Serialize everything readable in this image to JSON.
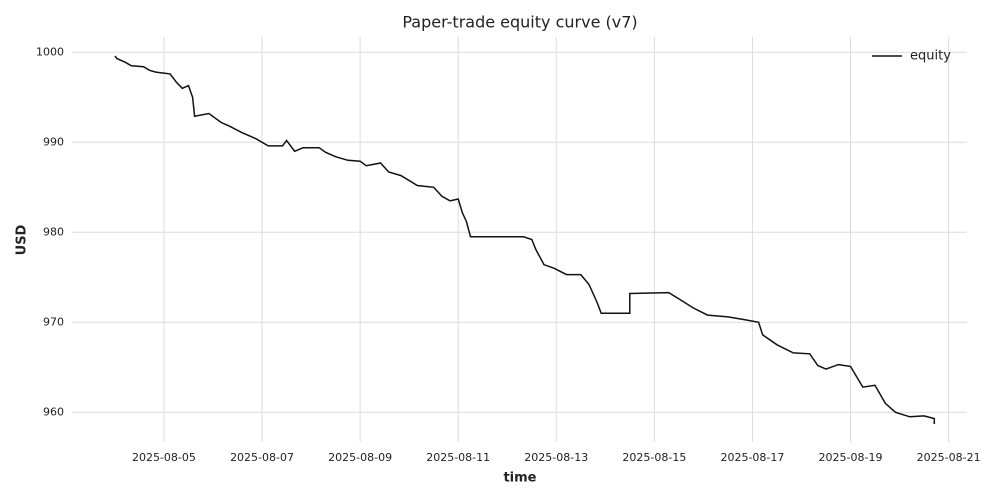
{
  "chart_data": {
    "type": "line",
    "title": "Paper-trade equity curve (v7)",
    "xlabel": "time",
    "ylabel": "USD",
    "x": [
      "2025-08-04T00:00",
      "2025-08-04T01:00",
      "2025-08-04T05:00",
      "2025-08-04T08:00",
      "2025-08-04T14:00",
      "2025-08-04T17:00",
      "2025-08-04T20:00",
      "2025-08-05T03:00",
      "2025-08-05T06:00",
      "2025-08-05T09:00",
      "2025-08-05T12:00",
      "2025-08-05T14:00",
      "2025-08-05T15:00",
      "2025-08-05T22:00",
      "2025-08-06T04:00",
      "2025-08-06T08:00",
      "2025-08-06T14:00",
      "2025-08-06T21:00",
      "2025-08-07T03:00",
      "2025-08-07T10:00",
      "2025-08-07T12:00",
      "2025-08-07T16:00",
      "2025-08-07T20:00",
      "2025-08-08T04:00",
      "2025-08-08T07:00",
      "2025-08-08T12:00",
      "2025-08-08T18:00",
      "2025-08-09T00:00",
      "2025-08-09T03:00",
      "2025-08-09T10:00",
      "2025-08-09T14:00",
      "2025-08-09T20:00",
      "2025-08-10T04:00",
      "2025-08-10T12:00",
      "2025-08-10T16:00",
      "2025-08-10T20:00",
      "2025-08-11T00:00",
      "2025-08-11T02:00",
      "2025-08-11T04:00",
      "2025-08-11T06:00",
      "2025-08-12T08:00",
      "2025-08-12T12:00",
      "2025-08-12T14:00",
      "2025-08-12T18:00",
      "2025-08-12T23:00",
      "2025-08-13T05:00",
      "2025-08-13T12:00",
      "2025-08-13T16:00",
      "2025-08-13T20:00",
      "2025-08-13T22:00",
      "2025-08-14T12:00",
      "2025-08-14T12:00",
      "2025-08-15T07:00",
      "2025-08-15T12:00",
      "2025-08-15T19:00",
      "2025-08-16T02:00",
      "2025-08-16T12:00",
      "2025-08-16T20:00",
      "2025-08-17T03:00",
      "2025-08-17T05:00",
      "2025-08-17T12:00",
      "2025-08-17T20:00",
      "2025-08-18T04:00",
      "2025-08-18T08:00",
      "2025-08-18T12:00",
      "2025-08-18T18:00",
      "2025-08-19T00:00",
      "2025-08-19T06:00",
      "2025-08-19T12:00",
      "2025-08-19T17:00",
      "2025-08-19T22:00",
      "2025-08-20T05:00",
      "2025-08-20T12:00",
      "2025-08-20T17:00",
      "2025-08-20T17:00"
    ],
    "series": [
      {
        "name": "equity",
        "color": "#111111",
        "values": [
          999.6,
          999.3,
          998.9,
          998.5,
          998.4,
          998.0,
          997.8,
          997.6,
          996.7,
          996.0,
          996.3,
          995.0,
          992.9,
          993.2,
          992.2,
          991.8,
          991.1,
          990.4,
          989.6,
          989.6,
          990.2,
          989.0,
          989.4,
          989.4,
          988.9,
          988.4,
          988.0,
          987.9,
          987.4,
          987.7,
          986.7,
          986.3,
          985.2,
          985.0,
          984.0,
          983.5,
          983.7,
          982.2,
          981.2,
          979.5,
          979.5,
          979.2,
          978.1,
          976.4,
          976.0,
          975.3,
          975.3,
          974.2,
          972.2,
          971.0,
          971.0,
          973.2,
          973.3,
          972.6,
          971.6,
          970.8,
          970.6,
          970.3,
          970.0,
          968.6,
          967.5,
          966.6,
          966.5,
          965.2,
          964.8,
          965.3,
          965.1,
          962.8,
          963.0,
          961.0,
          960.0,
          959.5,
          959.6,
          959.3,
          958.7
        ]
      }
    ],
    "xlim": [
      "2025-08-03T03:00",
      "2025-08-21T09:00"
    ],
    "xticks": [
      "2025-08-05",
      "2025-08-07",
      "2025-08-09",
      "2025-08-11",
      "2025-08-13",
      "2025-08-15",
      "2025-08-17",
      "2025-08-19",
      "2025-08-21"
    ],
    "ylim": [
      956.7,
      1001.7
    ],
    "yticks": [
      960,
      970,
      980,
      990,
      1000
    ],
    "grid": true,
    "legend": "upper right"
  }
}
